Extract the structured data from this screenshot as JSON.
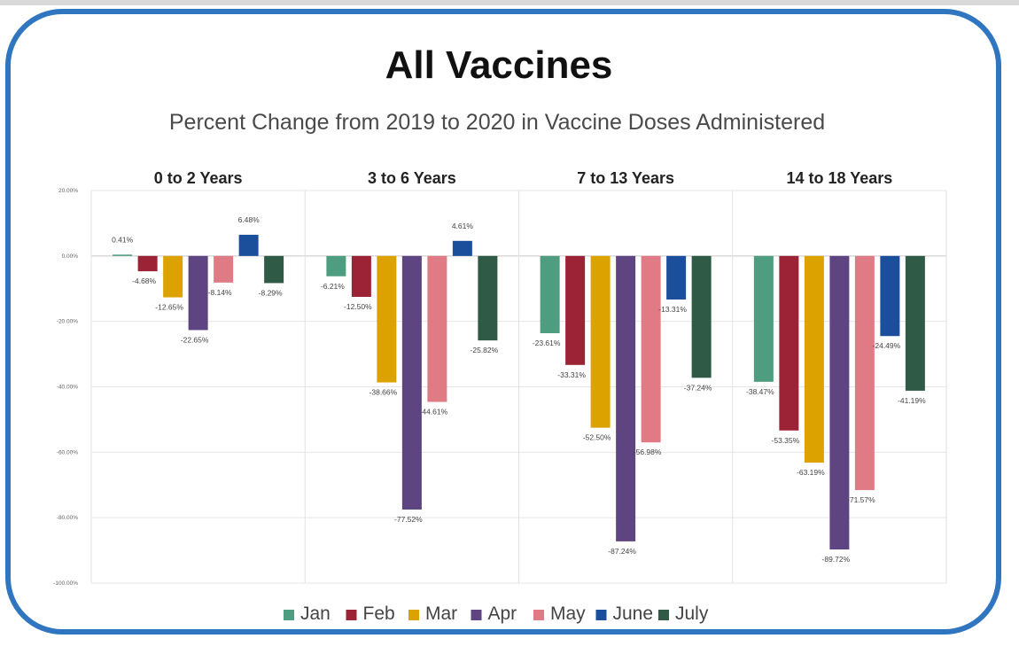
{
  "chart_data": {
    "type": "bar",
    "title": "All Vaccines",
    "subtitle": "Percent Change from 2019 to 2020 in Vaccine Doses Administered",
    "ylim": [
      -100,
      20
    ],
    "yticks": [
      20,
      0,
      -20,
      -40,
      -60,
      -80,
      -100
    ],
    "ytick_labels": [
      "20.00%",
      "0.00%",
      "-20.00%",
      "-40.00%",
      "-60.00%",
      "-80.00%",
      "-100.00%"
    ],
    "grid": true,
    "legend_position": "bottom",
    "series": [
      {
        "name": "Jan",
        "color": "#4e9d80"
      },
      {
        "name": "Feb",
        "color": "#9b2335"
      },
      {
        "name": "Mar",
        "color": "#dca300"
      },
      {
        "name": "Apr",
        "color": "#5f4482"
      },
      {
        "name": "May",
        "color": "#e07b86"
      },
      {
        "name": "June",
        "color": "#1b4f9c"
      },
      {
        "name": "July",
        "color": "#2f5a45"
      }
    ],
    "groups": [
      {
        "name": "0 to 2 Years",
        "values": [
          0.41,
          -4.68,
          -12.65,
          -22.65,
          -8.14,
          6.48,
          -8.29
        ],
        "labels": [
          "0.41%",
          "-4.68%",
          "-12.65%",
          "-22.65%",
          "-8.14%",
          "6.48%",
          "-8.29%"
        ]
      },
      {
        "name": "3 to 6 Years",
        "values": [
          -6.21,
          -12.5,
          -38.66,
          -77.52,
          -44.61,
          4.61,
          -25.82
        ],
        "labels": [
          "-6.21%",
          "-12.50%",
          "-38.66%",
          "-77.52%",
          "-44.61%",
          "4.61%",
          "-25.82%"
        ]
      },
      {
        "name": "7 to 13 Years",
        "values": [
          -23.61,
          -33.31,
          -52.5,
          -87.24,
          -56.98,
          -13.31,
          -37.24
        ],
        "labels": [
          "-23.61%",
          "-33.31%",
          "-52.50%",
          "-87.24%",
          "-56.98%",
          "-13.31%",
          "-37.24%"
        ]
      },
      {
        "name": "14 to 18 Years",
        "values": [
          -38.47,
          -53.35,
          -63.19,
          -89.72,
          -71.57,
          -24.49,
          -41.19
        ],
        "labels": [
          "-38.47%",
          "-53.35%",
          "-63.19%",
          "-89.72%",
          "-71.57%",
          "-24.49%",
          "-41.19%"
        ]
      }
    ]
  }
}
